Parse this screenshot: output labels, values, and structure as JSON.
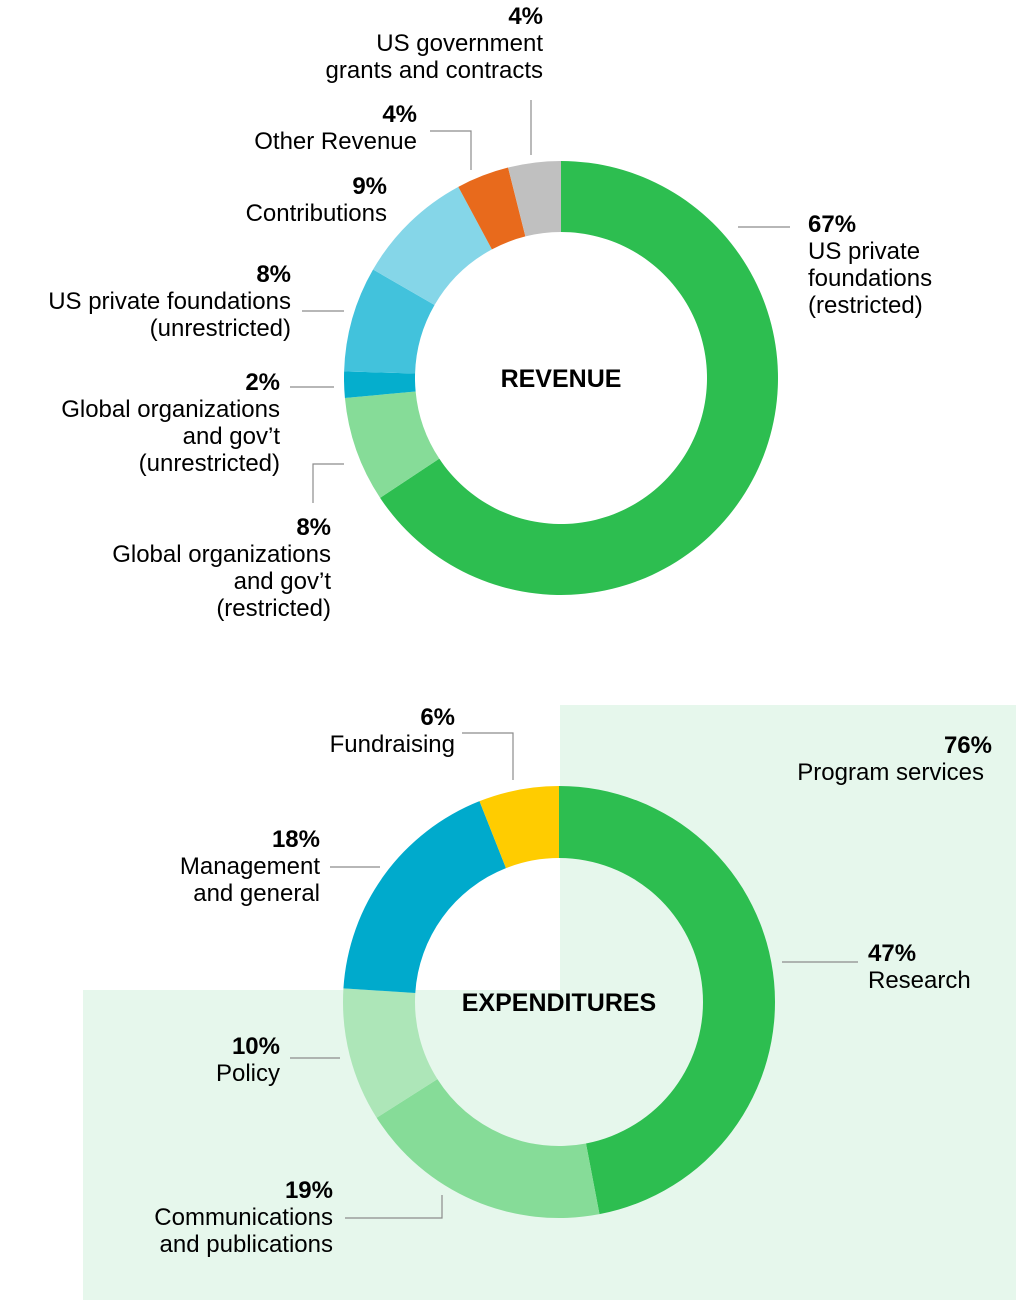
{
  "chart_data": [
    {
      "type": "pie",
      "center_label": "REVENUE",
      "slices": [
        {
          "pct_label": "67%",
          "value": 67,
          "label_lines": [
            "US private",
            "foundations",
            "(restricted)"
          ],
          "color": "#2dbe50"
        },
        {
          "pct_label": "8%",
          "value": 8,
          "label_lines": [
            "Global organizations",
            "and gov’t",
            "(restricted)"
          ],
          "color": "#86dc98"
        },
        {
          "pct_label": "2%",
          "value": 2,
          "label_lines": [
            "Global organizations",
            "and gov’t",
            "(unrestricted)"
          ],
          "color": "#05aecd"
        },
        {
          "pct_label": "8%",
          "value": 8,
          "label_lines": [
            "US private foundations",
            "(unrestricted)"
          ],
          "color": "#42c2dc"
        },
        {
          "pct_label": "9%",
          "value": 9,
          "label_lines": [
            "Contributions"
          ],
          "color": "#85d6e8"
        },
        {
          "pct_label": "4%",
          "value": 4,
          "label_lines": [
            "Other Revenue"
          ],
          "color": "#e86a1c"
        },
        {
          "pct_label": "4%",
          "value": 4,
          "label_lines": [
            "US government",
            "grants and contracts"
          ],
          "color": "#c0c0c0"
        }
      ]
    },
    {
      "type": "pie",
      "center_label": "EXPENDITURES",
      "group_label": {
        "pct_label": "76%",
        "label": "Program services",
        "background_color": "#e6f7ec"
      },
      "slices": [
        {
          "pct_label": "47%",
          "value": 47,
          "label_lines": [
            "Research"
          ],
          "color": "#2dbe50"
        },
        {
          "pct_label": "19%",
          "value": 19,
          "label_lines": [
            "Communications",
            "and publications"
          ],
          "color": "#86dc98"
        },
        {
          "pct_label": "10%",
          "value": 10,
          "label_lines": [
            "Policy"
          ],
          "color": "#ade6b8"
        },
        {
          "pct_label": "18%",
          "value": 18,
          "label_lines": [
            "Management",
            "and general"
          ],
          "color": "#00aacc"
        },
        {
          "pct_label": "6%",
          "value": 6,
          "label_lines": [
            "Fundraising"
          ],
          "color": "#ffcc00"
        }
      ]
    }
  ]
}
